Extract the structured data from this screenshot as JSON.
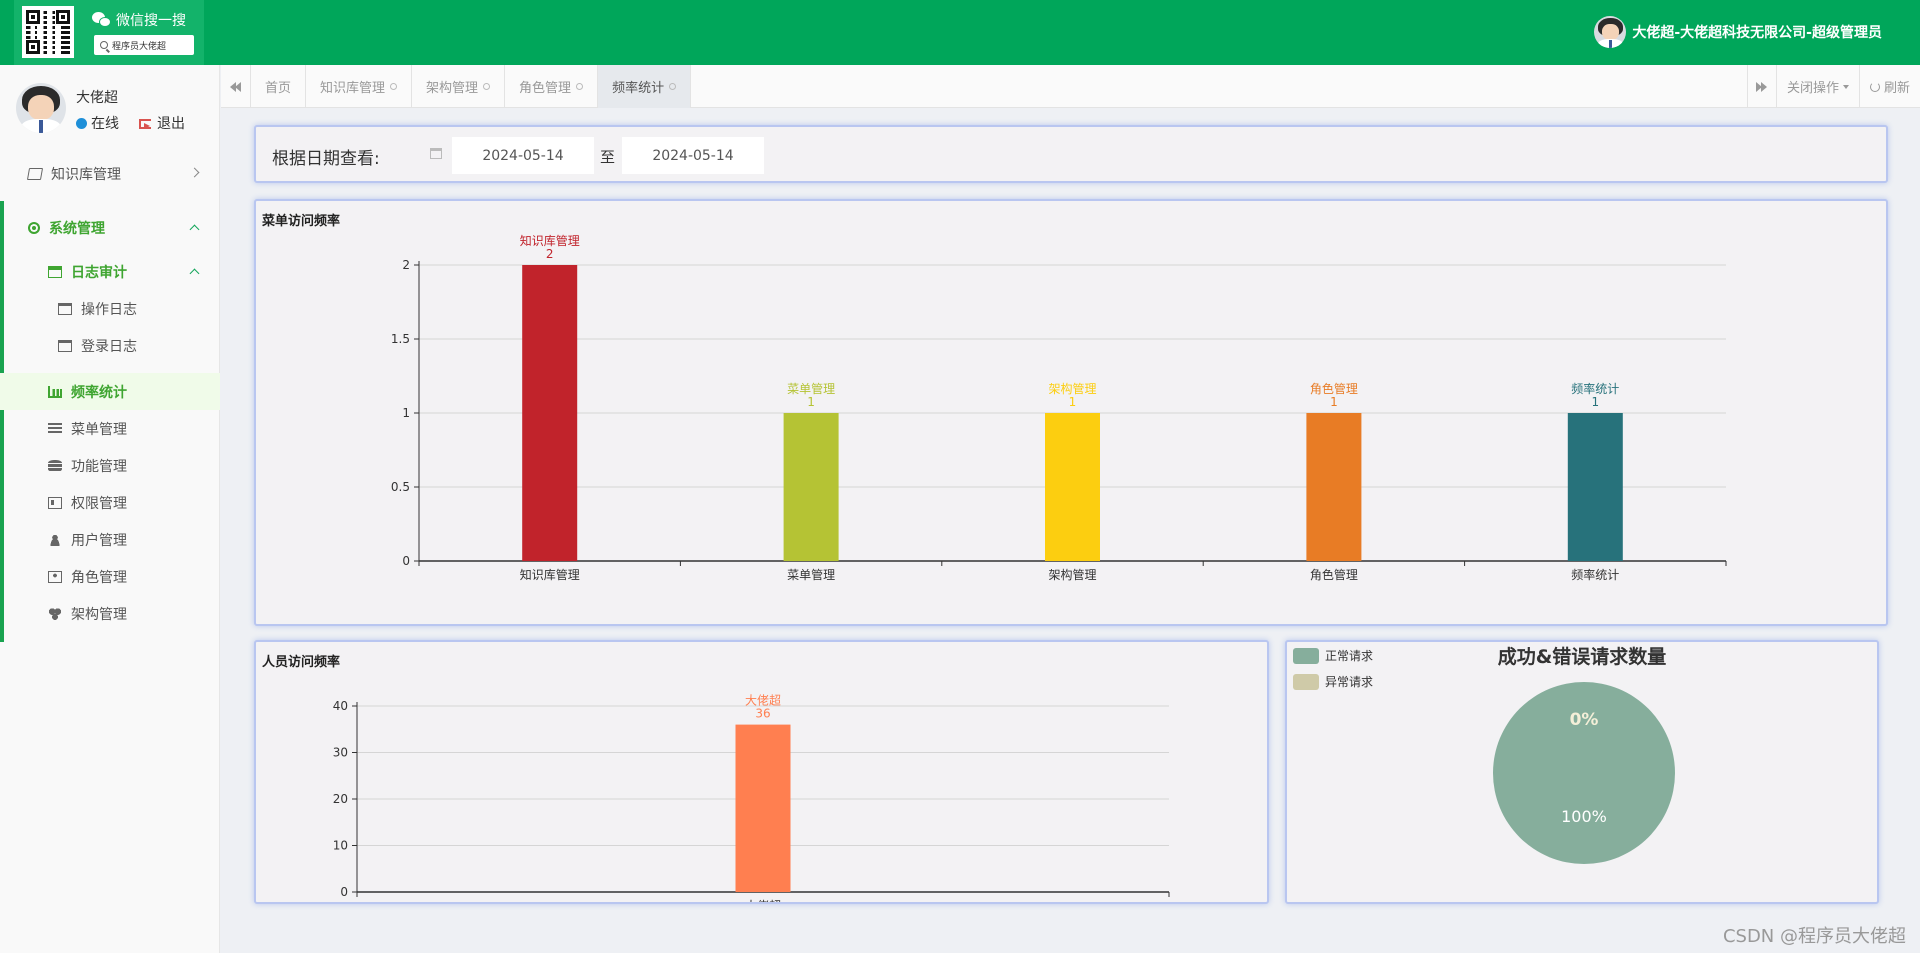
{
  "brand": {
    "wechat_title": "微信搜一搜",
    "search_text": "程序员大佬超"
  },
  "header": {
    "user_title": "大佬超-大佬超科技无限公司-超级管理员"
  },
  "sidebar": {
    "user_name": "大佬超",
    "status_online": "在线",
    "logout": "退出",
    "items": [
      {
        "label": "知识库管理",
        "icon": "book-icon"
      },
      {
        "label": "系统管理",
        "icon": "gear-icon"
      },
      {
        "label": "日志审计",
        "icon": "calendar-icon"
      },
      {
        "label": "操作日志",
        "icon": "calendar-check-icon"
      },
      {
        "label": "登录日志",
        "icon": "calendar-plus-icon"
      },
      {
        "label": "频率统计",
        "icon": "bar-chart-icon"
      },
      {
        "label": "菜单管理",
        "icon": "list-icon"
      },
      {
        "label": "功能管理",
        "icon": "database-icon"
      },
      {
        "label": "权限管理",
        "icon": "id-card-icon"
      },
      {
        "label": "用户管理",
        "icon": "user-icon"
      },
      {
        "label": "角色管理",
        "icon": "user-card-icon"
      },
      {
        "label": "架构管理",
        "icon": "cubes-icon"
      }
    ]
  },
  "tabs": [
    {
      "label": "首页"
    },
    {
      "label": "知识库管理"
    },
    {
      "label": "架构管理"
    },
    {
      "label": "角色管理"
    },
    {
      "label": "频率统计"
    }
  ],
  "tab_actions": {
    "close_ops": "关闭操作",
    "refresh": "刷新"
  },
  "date_filter": {
    "label": "根据日期查看:",
    "start": "2024-05-14",
    "separator": "至",
    "end": "2024-05-14"
  },
  "watermark": "CSDN @程序员大佬超",
  "colors": {
    "topbar": "#00a65a",
    "accent_green": "#3fa531"
  },
  "chart_data": [
    {
      "type": "bar",
      "title": "菜单访问频率",
      "categories": [
        "知识库管理",
        "菜单管理",
        "架构管理",
        "角色管理",
        "频率统计"
      ],
      "values": [
        2,
        1,
        1,
        1,
        1
      ],
      "colors": [
        "#c1232b",
        "#b5c334",
        "#fcce10",
        "#e87c25",
        "#27727b"
      ],
      "yticks": [
        "0",
        "0.5",
        "1",
        "1.5",
        "2"
      ],
      "ylim": [
        0,
        2
      ]
    },
    {
      "type": "bar",
      "title": "人员访问频率",
      "categories": [
        "大佬超"
      ],
      "values": [
        36
      ],
      "colors": [
        "#ff7f50"
      ],
      "yticks": [
        "0",
        "10",
        "20",
        "30",
        "40"
      ],
      "ylim": [
        0,
        40
      ]
    },
    {
      "type": "pie",
      "title": "成功&错误请求数量",
      "legend": [
        "正常请求",
        "异常请求"
      ],
      "values": [
        100,
        0
      ],
      "labels": [
        "100%",
        "0%"
      ],
      "colors": [
        "#86ae9c",
        "#cfcaa8"
      ]
    }
  ]
}
